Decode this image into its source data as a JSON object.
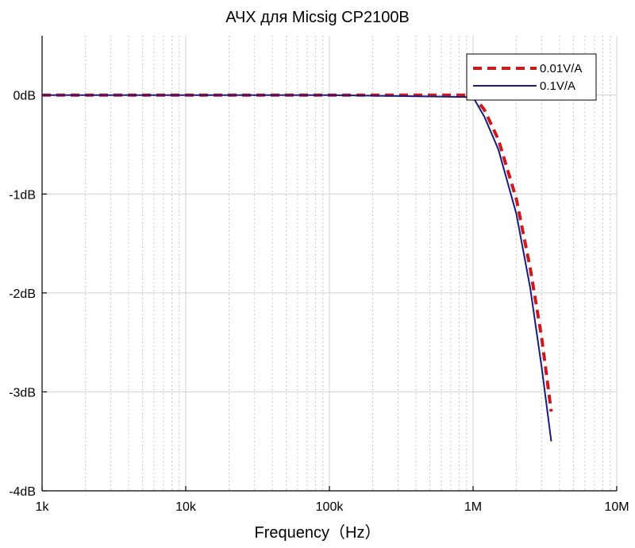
{
  "chart_data": {
    "type": "line",
    "title": "АЧХ для Micsig CP2100B",
    "xlabel": "Frequency（Hz）",
    "ylabel": "",
    "x_scale": "log",
    "xlim": [
      1000,
      10000000
    ],
    "ylim": [
      -4,
      0.6
    ],
    "x_ticks": [
      {
        "value": 1000,
        "label": "1k"
      },
      {
        "value": 10000,
        "label": "10k"
      },
      {
        "value": 100000,
        "label": "100k"
      },
      {
        "value": 1000000,
        "label": "1M"
      },
      {
        "value": 10000000,
        "label": "10M"
      }
    ],
    "y_ticks": [
      {
        "value": 0,
        "label": "0dB"
      },
      {
        "value": -1,
        "label": "-1dB"
      },
      {
        "value": -2,
        "label": "-2dB"
      },
      {
        "value": -3,
        "label": "-3dB"
      },
      {
        "value": -4,
        "label": "-4dB"
      }
    ],
    "grid": true,
    "legend_position": "top-right",
    "series": [
      {
        "name": "0.01V/A",
        "color": "#cc1a1a",
        "style": "dashed",
        "x": [
          1000,
          10000,
          100000,
          1000000,
          1200000,
          1500000,
          2000000,
          2500000,
          3000000,
          3500000
        ],
        "y": [
          0,
          0,
          0,
          0,
          -0.15,
          -0.45,
          -1.05,
          -1.75,
          -2.45,
          -3.2
        ]
      },
      {
        "name": "0.1V/A",
        "color": "#1a1a80",
        "style": "solid",
        "x": [
          1000,
          10000,
          100000,
          1000000,
          1200000,
          1500000,
          2000000,
          2500000,
          3000000,
          3500000
        ],
        "y": [
          0,
          0,
          0,
          -0.02,
          -0.22,
          -0.55,
          -1.2,
          -1.95,
          -2.75,
          -3.5
        ]
      }
    ]
  }
}
